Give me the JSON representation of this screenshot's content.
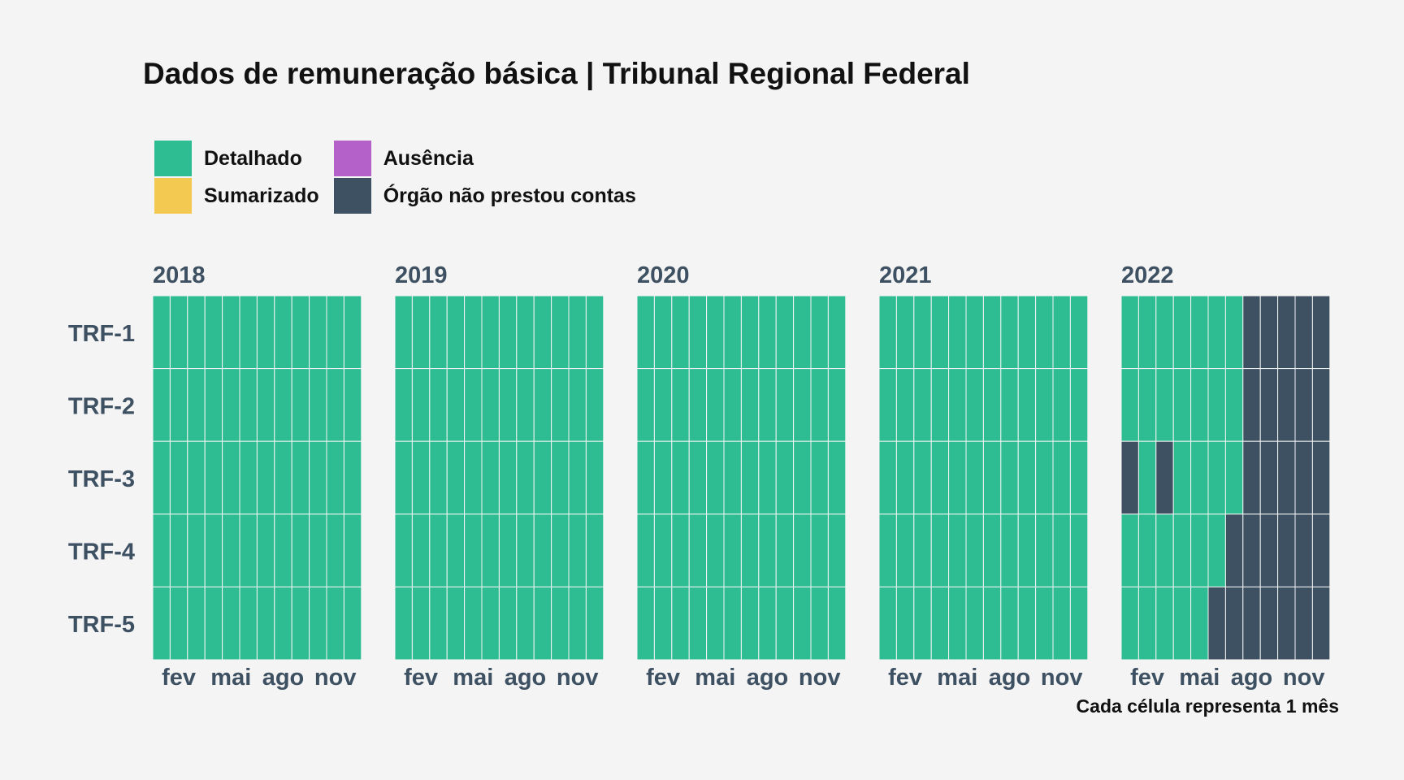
{
  "title": "Dados de remuneração básica | Tribunal Regional Federal",
  "caption": "Cada célula representa 1 mês",
  "legend": [
    {
      "key": "D",
      "label": "Detalhado",
      "color": "#2ebd92"
    },
    {
      "key": "A",
      "label": "Ausência",
      "color": "#b461c9"
    },
    {
      "key": "S",
      "label": "Sumarizado",
      "color": "#f3c951"
    },
    {
      "key": "N",
      "label": "Órgão não prestou contas",
      "color": "#3e5163"
    }
  ],
  "chart_data": {
    "type": "heatmap",
    "title": "Dados de remuneração básica | Tribunal Regional Federal",
    "years": [
      "2018",
      "2019",
      "2020",
      "2021",
      "2022"
    ],
    "rows": [
      "TRF-1",
      "TRF-2",
      "TRF-3",
      "TRF-4",
      "TRF-5"
    ],
    "month_ticks": [
      {
        "month": 2,
        "label": "fev"
      },
      {
        "month": 5,
        "label": "mai"
      },
      {
        "month": 8,
        "label": "ago"
      },
      {
        "month": 11,
        "label": "nov"
      }
    ],
    "status_colors": {
      "D": "#2ebd92",
      "S": "#f3c951",
      "A": "#b461c9",
      "N": "#3e5163"
    },
    "cells": {
      "2018": {
        "TRF-1": "DDDDDDDDDDDD",
        "TRF-2": "DDDDDDDDDDDD",
        "TRF-3": "DDDDDDDDDDDD",
        "TRF-4": "DDDDDDDDDDDD",
        "TRF-5": "DDDDDDDDDDDD"
      },
      "2019": {
        "TRF-1": "DDDDDDDDDDDD",
        "TRF-2": "DDDDDDDDDDDD",
        "TRF-3": "DDDDDDDDDDDD",
        "TRF-4": "DDDDDDDDDDDD",
        "TRF-5": "DDDDDDDDDDDD"
      },
      "2020": {
        "TRF-1": "DDDDDDDDDDDD",
        "TRF-2": "DDDDDDDDDDDD",
        "TRF-3": "DDDDDDDDDDDD",
        "TRF-4": "DDDDDDDDDDDD",
        "TRF-5": "DDDDDDDDDDDD"
      },
      "2021": {
        "TRF-1": "DDDDDDDDDDDD",
        "TRF-2": "DDDDDDDDDDDD",
        "TRF-3": "DDDDDDDDDDDD",
        "TRF-4": "DDDDDDDDDDDD",
        "TRF-5": "DDDDDDDDDDDD"
      },
      "2022": {
        "TRF-1": "DDDDDDDNNNNN",
        "TRF-2": "DDDDDDDNNNNN",
        "TRF-3": "NDNDDDDNNNNN",
        "TRF-4": "DDDDDDNNNNNN",
        "TRF-5": "DDDDDNNNNNNN"
      }
    }
  }
}
